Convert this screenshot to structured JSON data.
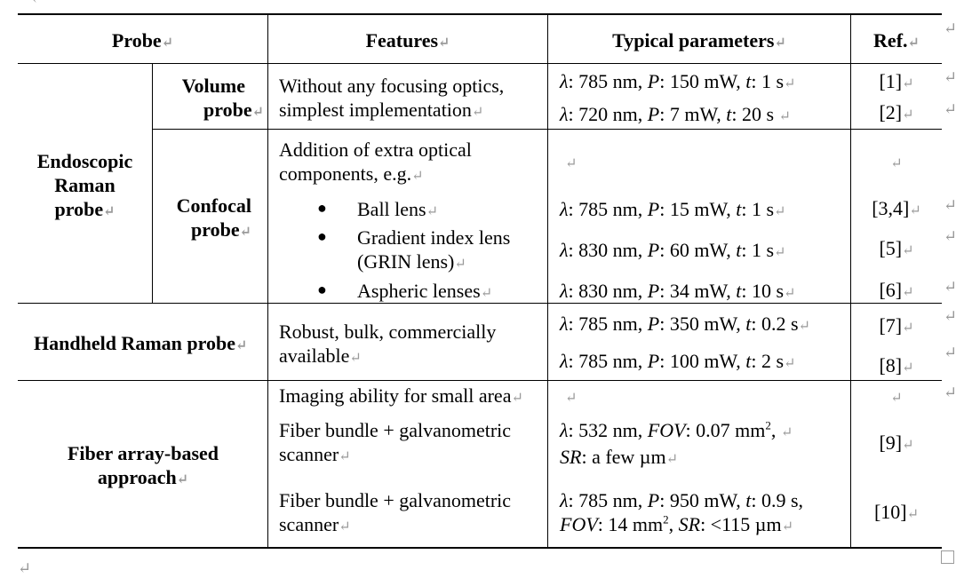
{
  "table": {
    "headers": {
      "probe": "Probe",
      "features": "Features",
      "typical_parameters": "Typical parameters",
      "ref": "Ref."
    },
    "mark": "↵",
    "endoscopic": {
      "label_l1": "Endoscopic",
      "label_l2": "Raman",
      "label_l3": "probe",
      "volume": {
        "label_l1": "Volume",
        "label_l2": "probe",
        "features_l1": "Without any focusing optics,",
        "features_l2": "simplest implementation",
        "params": [
          {
            "lambda_sym": "λ",
            "lambda": ": 785 nm, ",
            "p_sym": "P",
            "p": ": 150 mW, ",
            "t_sym": "t",
            "t": ": 1 s",
            "ref": "[1]"
          },
          {
            "lambda_sym": "λ",
            "lambda": ": 720 nm, ",
            "p_sym": "P",
            "p": ": 7 mW, ",
            "t_sym": "t",
            "t": ": 20 s ",
            "ref": "[2]"
          }
        ]
      },
      "confocal": {
        "label_l1": "Confocal",
        "label_l2": "probe",
        "features_l1": "Addition of extra optical",
        "features_l2": "components, e.g.",
        "bullets": [
          {
            "text_l1": "Ball lens",
            "text_l2": ""
          },
          {
            "text_l1": "Gradient index lens",
            "text_l2": "(GRIN lens)"
          },
          {
            "text_l1": "Aspheric lenses",
            "text_l2": ""
          }
        ],
        "params": [
          {
            "lambda_sym": "λ",
            "lambda": ": 785 nm, ",
            "p_sym": "P",
            "p": ": 15 mW, ",
            "t_sym": "t",
            "t": ": 1 s",
            "ref": "[3,4]"
          },
          {
            "lambda_sym": "λ",
            "lambda": ": 830 nm, ",
            "p_sym": "P",
            "p": ": 60 mW, ",
            "t_sym": "t",
            "t": ": 1 s",
            "ref": "[5]"
          },
          {
            "lambda_sym": "λ",
            "lambda": ": 830 nm, ",
            "p_sym": "P",
            "p": ": 34 mW, ",
            "t_sym": "t",
            "t": ": 10 s",
            "ref": "[6]"
          }
        ]
      }
    },
    "handheld": {
      "label": "Handheld Raman probe",
      "features_l1": "Robust, bulk, commercially",
      "features_l2": "available",
      "params": [
        {
          "lambda_sym": "λ",
          "lambda": ": 785 nm, ",
          "p_sym": "P",
          "p": ": 350 mW, ",
          "t_sym": "t",
          "t": ": 0.2 s",
          "ref": "[7]"
        },
        {
          "lambda_sym": "λ",
          "lambda": ": 785 nm, ",
          "p_sym": "P",
          "p": ": 100 mW, ",
          "t_sym": "t",
          "t": ": 2 s",
          "ref": "[8]"
        }
      ]
    },
    "fiber": {
      "label_l1": "Fiber array-based",
      "label_l2": "approach",
      "feature_intro": "Imaging ability for small area",
      "rows": [
        {
          "features_l1": "Fiber bundle + galvanometric",
          "features_l2": "scanner",
          "lambda_sym": "λ",
          "lambda": ": 532 nm, ",
          "fov_sym": "FOV",
          "fov": ": 0.07 mm",
          "fov_sup": "2",
          "fov_tail": ", ",
          "sr_sym": "SR",
          "sr": ": a few µm",
          "ref": "[9]"
        },
        {
          "features_l1": "Fiber bundle + galvanometric",
          "features_l2": "scanner",
          "lambda_sym": "λ",
          "lambda": ": 785 nm, ",
          "p_sym": "P",
          "p": ": 950 mW, ",
          "t_sym": "t",
          "t": ": 0.9 s,",
          "fov_sym": "FOV",
          "fov": ": 14 mm",
          "fov_sup": "2",
          "fov_tail": ", ",
          "sr_sym": "SR",
          "sr": ":  <115 µm",
          "ref": "[10]"
        }
      ]
    }
  }
}
